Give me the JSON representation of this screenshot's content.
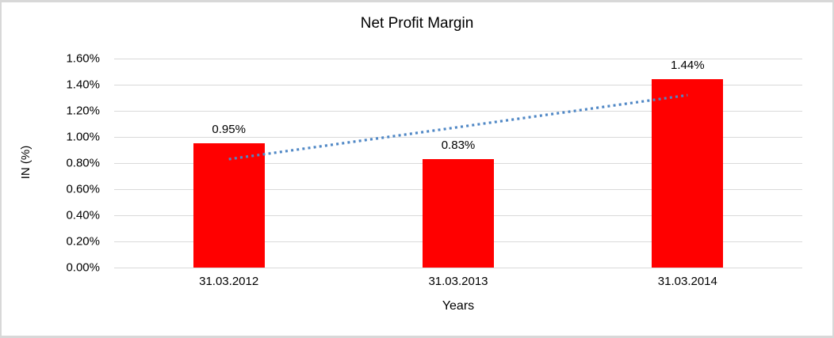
{
  "chart_data": {
    "type": "bar",
    "title": "Net Profit Margin",
    "xlabel": "Years",
    "ylabel": "IN (%)",
    "categories": [
      "31.03.2012",
      "31.03.2013",
      "31.03.2014"
    ],
    "values": [
      0.95,
      0.83,
      1.44
    ],
    "data_labels": [
      "0.95%",
      "0.83%",
      "1.44%"
    ],
    "y_tick_labels": [
      "0.00%",
      "0.20%",
      "0.40%",
      "0.60%",
      "0.80%",
      "1.00%",
      "1.20%",
      "1.40%",
      "1.60%"
    ],
    "y_tick_values": [
      0,
      0.2,
      0.4,
      0.6,
      0.8,
      1.0,
      1.2,
      1.4,
      1.6
    ],
    "ylim": [
      0,
      1.6
    ],
    "grid": true,
    "legend": "none",
    "colors": {
      "bar": "#FF0000",
      "trendline": "#4F87C5",
      "gridline": "#D9D9D9",
      "text": "#000000"
    },
    "trendline": {
      "type": "linear",
      "style": "dotted",
      "start_value": 0.83,
      "end_value": 1.32
    }
  }
}
